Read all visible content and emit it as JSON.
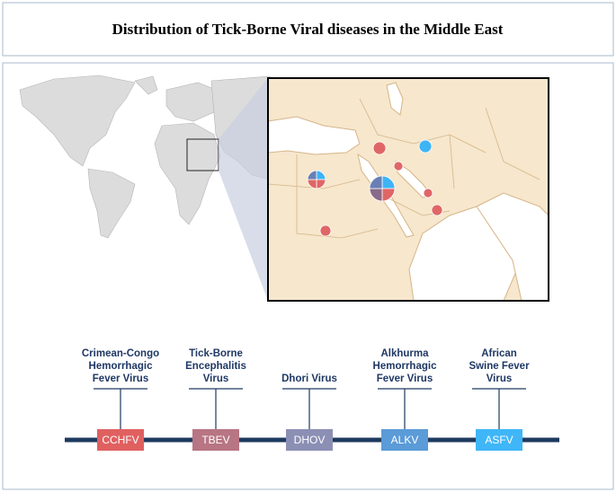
{
  "header": {
    "title": "Distribution of Tick-Borne Viral diseases in the Middle East"
  },
  "viruses": [
    {
      "name": [
        "Crimean-Congo",
        "Hemorrhagic",
        "Fever Virus"
      ],
      "abbreviation": "CCHFV"
    },
    {
      "name": [
        "Tick-Borne",
        "Encephalitis",
        "Virus"
      ],
      "abbreviation": "TBEV"
    },
    {
      "name": [
        "Dhori Virus"
      ],
      "abbreviation": "DHOV"
    },
    {
      "name": [
        "Alkhurma",
        "Hemorrhagic",
        "Fever Virus"
      ],
      "abbreviation": "ALKV"
    },
    {
      "name": [
        "African",
        "Swine Fever",
        "Virus"
      ],
      "abbreviation": "ASFV"
    }
  ]
}
